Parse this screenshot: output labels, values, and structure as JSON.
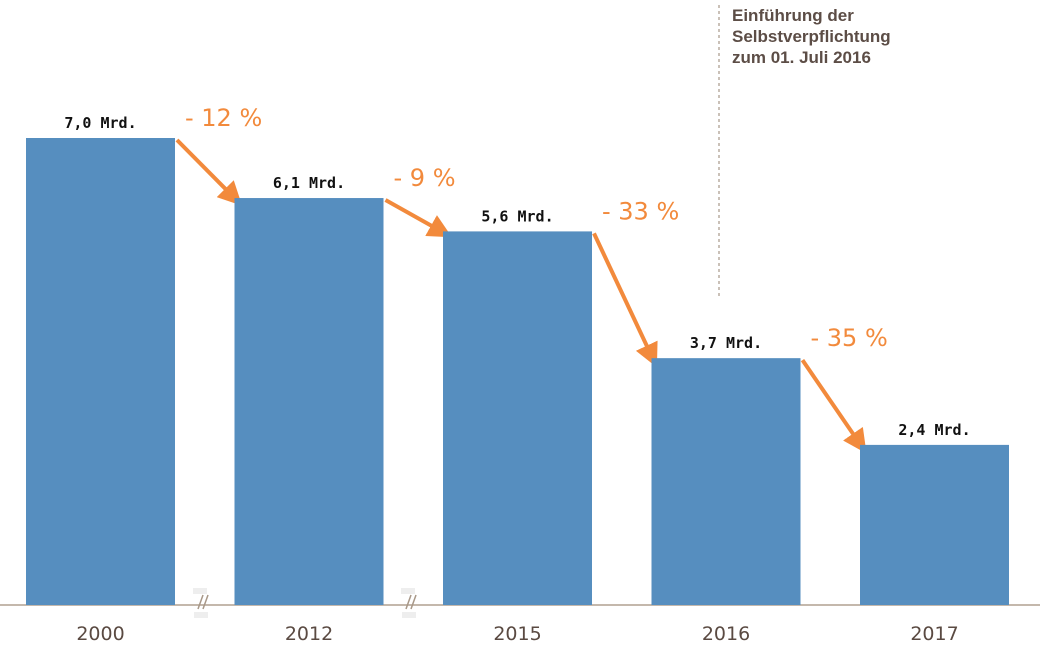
{
  "chart_data": {
    "type": "bar",
    "categories": [
      "2000",
      "2012",
      "2015",
      "2016",
      "2017"
    ],
    "values": [
      7.0,
      6.1,
      5.6,
      3.7,
      2.4
    ],
    "value_labels": [
      "7,0 Mrd.",
      "6,1 Mrd.",
      "5,6 Mrd.",
      "3,7 Mrd.",
      "2,4 Mrd."
    ],
    "changes": [
      "- 12 %",
      "- 9 %",
      "- 33 %",
      "- 35 %"
    ],
    "ylim": [
      0,
      7.0
    ],
    "axis_breaks_after": [
      "2000",
      "2012"
    ],
    "annotation": {
      "lines": [
        "Einführung der",
        "Selbstverpflichtung",
        "zum 01. Juli 2016"
      ],
      "between": [
        "2015",
        "2016"
      ]
    },
    "title": "",
    "xlabel": "",
    "ylabel": "",
    "grid": false
  },
  "colors": {
    "bar": "#568ebf",
    "arrow": "#f28a3c",
    "text": "#5a4a42",
    "axis": "#b0a090"
  }
}
